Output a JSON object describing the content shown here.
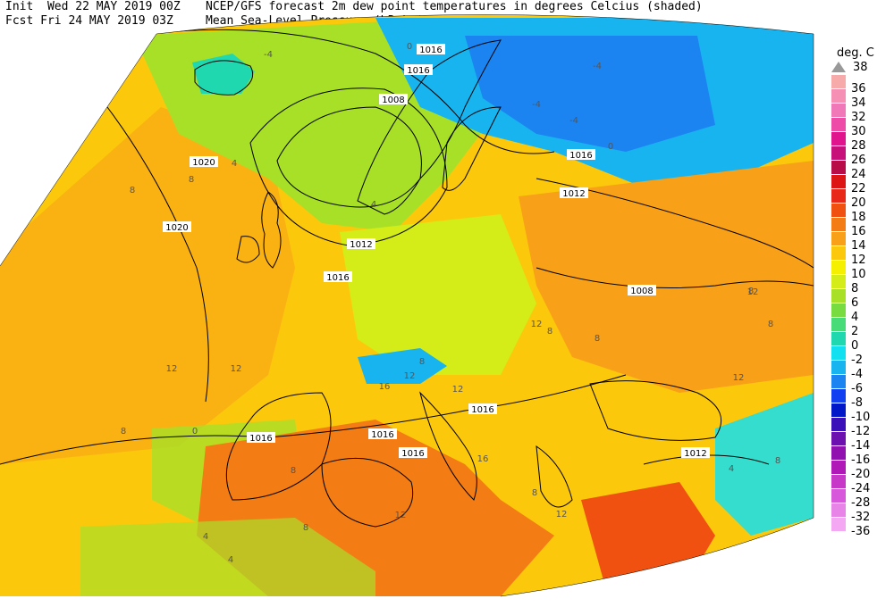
{
  "header": {
    "init_line": "Init  Wed 22 MAY 2019 00Z",
    "fcst_line": "Fcst Fri 24 MAY 2019 03Z",
    "title_line": "NCEP/GFS forecast 2m dew point temperatures in degrees Celcius (shaded)",
    "subtitle_line": "Mean Sea-Level Pressure (hPa) (black)."
  },
  "legend": {
    "unit": "deg. C",
    "top_value": "38",
    "items": [
      {
        "label": "36",
        "color": "#f7aaaa"
      },
      {
        "label": "34",
        "color": "#f590b4"
      },
      {
        "label": "32",
        "color": "#f078b8"
      },
      {
        "label": "30",
        "color": "#ee4aa8"
      },
      {
        "label": "28",
        "color": "#e0148c"
      },
      {
        "label": "26",
        "color": "#c8107a"
      },
      {
        "label": "24",
        "color": "#b80c48"
      },
      {
        "label": "22",
        "color": "#dc1414"
      },
      {
        "label": "20",
        "color": "#e82818"
      },
      {
        "label": "18",
        "color": "#f05010"
      },
      {
        "label": "16",
        "color": "#f47c14"
      },
      {
        "label": "14",
        "color": "#f8a018"
      },
      {
        "label": "12",
        "color": "#fcc80c"
      },
      {
        "label": "10",
        "color": "#f4f000"
      },
      {
        "label": "8",
        "color": "#d4ec18"
      },
      {
        "label": "6",
        "color": "#a8e028"
      },
      {
        "label": "4",
        "color": "#78dc40"
      },
      {
        "label": "2",
        "color": "#48dc78"
      },
      {
        "label": "0",
        "color": "#20d8b0"
      },
      {
        "label": "-2",
        "color": "#10e0f0"
      },
      {
        "label": "-4",
        "color": "#18b4f0"
      },
      {
        "label": "-6",
        "color": "#1c84f0"
      },
      {
        "label": "-8",
        "color": "#1040f0"
      },
      {
        "label": "-10",
        "color": "#0018c8"
      },
      {
        "label": "-12",
        "color": "#3c10b8"
      },
      {
        "label": "-14",
        "color": "#6c10b0"
      },
      {
        "label": "-16",
        "color": "#9010b0"
      },
      {
        "label": "-20",
        "color": "#b018b8"
      },
      {
        "label": "-24",
        "color": "#c838c8"
      },
      {
        "label": "-28",
        "color": "#d858dc"
      },
      {
        "label": "-32",
        "color": "#e884e8"
      },
      {
        "label": "-36",
        "color": "#f4a8f4"
      }
    ]
  },
  "isobar_labels": [
    "1016",
    "1016",
    "1008",
    "1020",
    "1020",
    "1012",
    "1016",
    "1016",
    "1012",
    "1008",
    "1016",
    "1016",
    "1016",
    "1016",
    "1012"
  ],
  "dewpoint_labels": [
    "0",
    "-4",
    "-4",
    "-4",
    "-4",
    "0",
    "4",
    "8",
    "4",
    "8",
    "8",
    "12",
    "12",
    "12",
    "12",
    "8",
    "8",
    "12",
    "8",
    "8",
    "12",
    "16",
    "16",
    "8",
    "12",
    "4",
    "8",
    "0",
    "12",
    "8",
    "8",
    "4",
    "8",
    "12",
    "4"
  ]
}
